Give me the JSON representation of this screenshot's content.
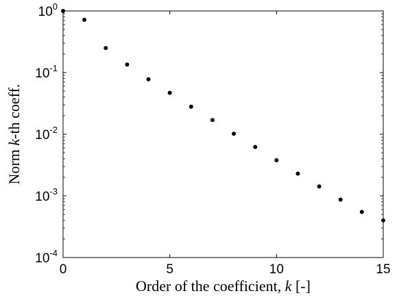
{
  "chart_data": {
    "type": "scatter",
    "title": "",
    "xlabel": {
      "prefix": "Order of the coefficient, ",
      "var": "k",
      "suffix": " [-]"
    },
    "ylabel": {
      "prefix": "Norm ",
      "var": "k",
      "suffix": "-th coeff."
    },
    "xlim": [
      0,
      15
    ],
    "ylim": [
      0.0001,
      1
    ],
    "yscale": "log",
    "grid": false,
    "legend": "none",
    "x_ticks": [
      {
        "value": 0,
        "label": "0"
      },
      {
        "value": 5,
        "label": "5"
      },
      {
        "value": 10,
        "label": "10"
      },
      {
        "value": 15,
        "label": "15"
      }
    ],
    "y_ticks": [
      {
        "value": 1,
        "base": "10",
        "exp": "0"
      },
      {
        "value": 0.1,
        "base": "10",
        "exp": "-1"
      },
      {
        "value": 0.01,
        "base": "10",
        "exp": "-2"
      },
      {
        "value": 0.001,
        "base": "10",
        "exp": "-3"
      },
      {
        "value": 0.0001,
        "base": "10",
        "exp": "-4"
      }
    ],
    "series": [
      {
        "color": "#000000",
        "x": [
          0,
          1,
          2,
          3,
          4,
          5,
          6,
          7,
          8,
          9,
          10,
          11,
          12,
          13,
          14,
          15
        ],
        "y": [
          1.0,
          0.72,
          0.25,
          0.135,
          0.078,
          0.047,
          0.028,
          0.017,
          0.0102,
          0.0062,
          0.0038,
          0.0023,
          0.00142,
          0.00087,
          0.00055,
          0.0004
        ]
      }
    ]
  }
}
